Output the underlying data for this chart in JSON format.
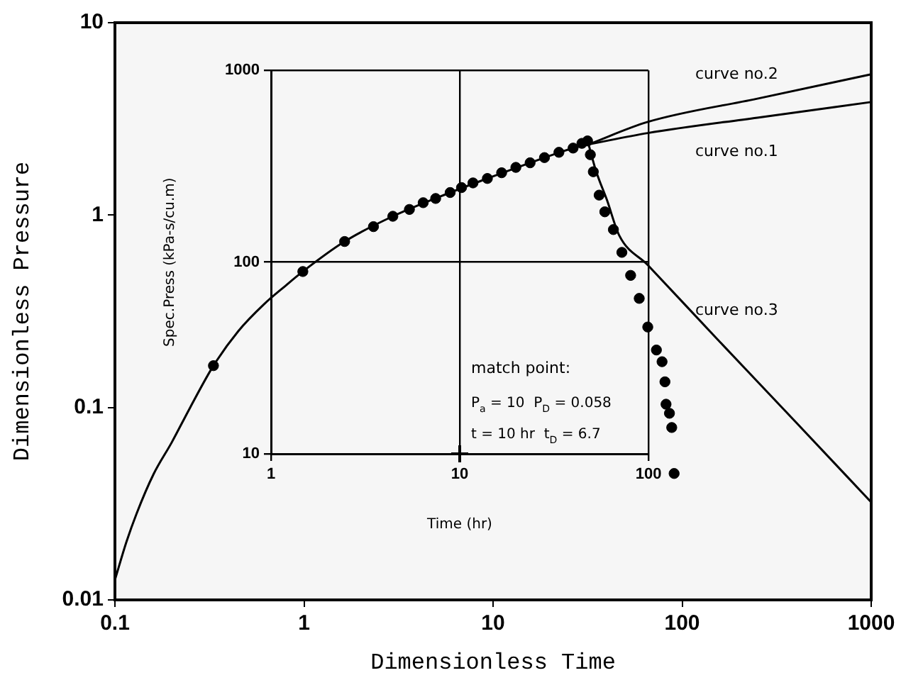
{
  "chart_data": [
    {
      "type": "line",
      "xlabel": "Dimensionless Time",
      "ylabel": "Dimensionless Pressure",
      "xlim": [
        0.1,
        1000
      ],
      "ylim": [
        0.01,
        10
      ],
      "xticks": [
        0.1,
        1,
        10,
        100,
        1000
      ],
      "yticks": [
        0.01,
        0.1,
        1,
        10
      ],
      "log": "xy",
      "grid": false,
      "series": [
        {
          "color": "#000000",
          "marker": "none",
          "x": [
            0.1,
            0.115,
            0.13,
            0.16,
            0.2,
            0.25,
            0.332,
            0.45,
            0.614,
            0.8,
            0.986,
            1.64,
            2.95,
            5.93,
            9.33,
            15.7,
            26.5,
            32
          ],
          "values": [
            0.0127,
            0.02,
            0.028,
            0.045,
            0.066,
            0.1,
            0.165,
            0.25,
            0.344,
            0.43,
            0.509,
            0.729,
            0.986,
            1.31,
            1.55,
            1.87,
            2.23,
            2.33
          ]
        },
        {
          "name": "curve no.1",
          "color": "#000000",
          "marker": "none",
          "x": [
            32,
            65.8,
            250,
            1000
          ],
          "values": [
            2.33,
            2.67,
            3.21,
            3.87
          ]
        },
        {
          "name": "curve no.2",
          "color": "#000000",
          "marker": "none",
          "x": [
            32,
            65.8,
            250,
            1000
          ],
          "values": [
            2.33,
            3.05,
            4.03,
            5.39
          ]
        },
        {
          "name": "curve no.3",
          "color": "#000000",
          "marker": "none",
          "x": [
            32,
            35,
            40,
            46.4,
            65.8,
            150,
            400,
            1000
          ],
          "values": [
            2.33,
            1.7,
            1.2,
            0.787,
            0.55,
            0.232,
            0.0838,
            0.0322
          ]
        },
        {
          "type": "scatter",
          "color": "#000000",
          "marker": "circle",
          "x": [
            0.332,
            0.986,
            1.64,
            2.33,
            2.95,
            3.61,
            4.27,
            4.97,
            5.93,
            6.81,
            7.83,
            9.33,
            11.1,
            13.2,
            15.7,
            18.7,
            22.3,
            26.5,
            29.5,
            31.6,
            32.7,
            33.9,
            36.4,
            39,
            43.3,
            48,
            53.4,
            59.3,
            65.8,
            73.1,
            78.3,
            81.1,
            82.2,
            85.7,
            88.1,
            90.7
          ],
          "values": [
            0.165,
            0.509,
            0.729,
            0.871,
            0.986,
            1.07,
            1.16,
            1.22,
            1.31,
            1.39,
            1.47,
            1.55,
            1.66,
            1.77,
            1.87,
            1.99,
            2.12,
            2.23,
            2.36,
            2.43,
            2.06,
            1.68,
            1.27,
            1.04,
            0.841,
            0.64,
            0.486,
            0.369,
            0.262,
            0.199,
            0.173,
            0.136,
            0.104,
            0.0933,
            0.0787,
            0.0454
          ]
        }
      ]
    },
    {
      "type": "scatter",
      "xlabel": "Time (hr)",
      "ylabel": "Spec.Press (kPa-s/cu.m)",
      "xlim": [
        1,
        100
      ],
      "ylim": [
        10,
        1000
      ],
      "xticks": [
        1,
        10,
        100
      ],
      "yticks": [
        10,
        100,
        1000
      ],
      "log": "xy",
      "grid": true,
      "series": [
        {
          "color": "#000000",
          "marker": "cross",
          "x": [
            10
          ],
          "values": [
            10
          ]
        }
      ],
      "annotations": [
        "match point:",
        "P$_{a}$ = 10  P$_{D}$ = 0.058",
        "t = 10 hr  t$_{D}$ = 6.7"
      ]
    }
  ]
}
